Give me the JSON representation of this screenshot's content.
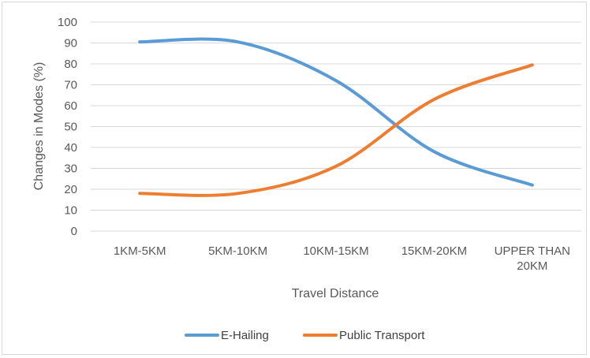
{
  "chart_data": {
    "type": "line",
    "title": "",
    "xlabel": "Travel Distance",
    "ylabel": "Changes in Modes (%)",
    "categories": [
      "1KM-5KM",
      "5KM-10KM",
      "10KM-15KM",
      "15KM-20KM",
      "UPPER THAN 20KM"
    ],
    "category_lines": [
      [
        "1KM-5KM"
      ],
      [
        "5KM-10KM"
      ],
      [
        "10KM-15KM"
      ],
      [
        "15KM-20KM"
      ],
      [
        "UPPER THAN",
        "20KM"
      ]
    ],
    "ylim": [
      0,
      100
    ],
    "yticks": [
      0,
      10,
      20,
      30,
      40,
      50,
      60,
      70,
      80,
      90,
      100
    ],
    "grid": true,
    "legend": "bottom",
    "smooth": true,
    "series": [
      {
        "name": "E-Hailing",
        "color": "#5b9bd5",
        "values": [
          90.5,
          90.5,
          72,
          38,
          22
        ]
      },
      {
        "name": "Public Transport",
        "color": "#ed7d31",
        "values": [
          18,
          18,
          31,
          63,
          79.5
        ]
      }
    ]
  }
}
